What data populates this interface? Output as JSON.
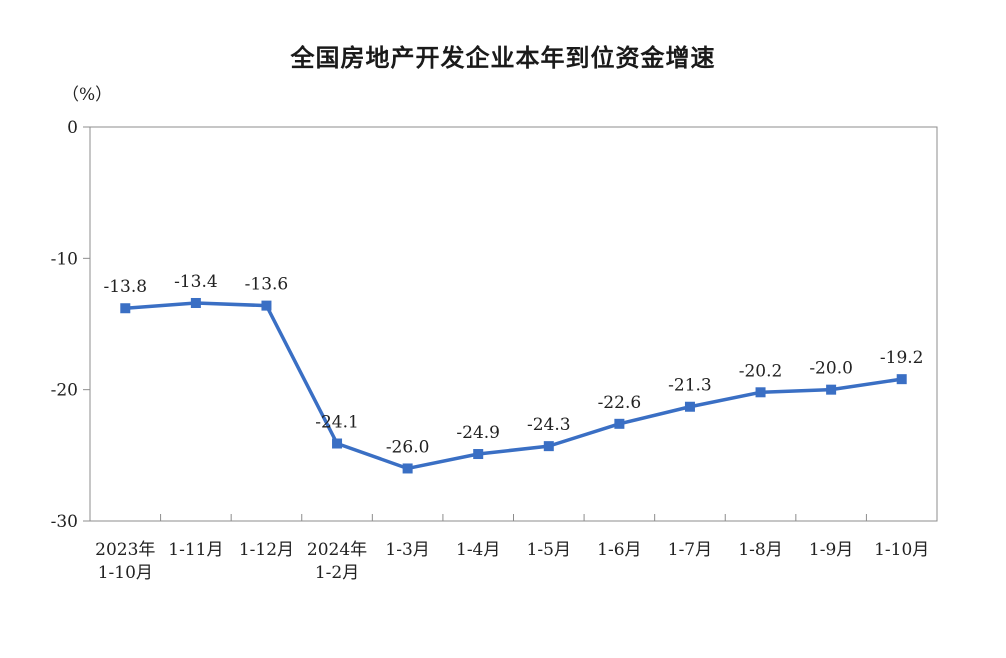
{
  "chart_data": {
    "type": "line",
    "title": "全国房地产开发企业本年到位资金增速",
    "unit": "（%）",
    "categories": [
      [
        "2023年",
        "1-10月"
      ],
      [
        "1-11月"
      ],
      [
        "1-12月"
      ],
      [
        "2024年",
        "1-2月"
      ],
      [
        "1-3月"
      ],
      [
        "1-4月"
      ],
      [
        "1-5月"
      ],
      [
        "1-6月"
      ],
      [
        "1-7月"
      ],
      [
        "1-8月"
      ],
      [
        "1-9月"
      ],
      [
        "1-10月"
      ]
    ],
    "series": [
      {
        "values": [
          -13.8,
          -13.4,
          -13.6,
          -24.1,
          -26.0,
          -24.9,
          -24.3,
          -22.6,
          -21.3,
          -20.2,
          -20.0,
          -19.2
        ],
        "labels": [
          "-13.8",
          "-13.4",
          "-13.6",
          "-24.1",
          "-26.0",
          "-24.9",
          "-24.3",
          "-22.6",
          "-21.3",
          "-20.2",
          "-20.0",
          "-19.2"
        ],
        "color": "#3a6fc4",
        "marker": "square"
      }
    ],
    "ylim": [
      -30,
      0
    ],
    "yticks": [
      0,
      -10,
      -20,
      -30
    ],
    "ytick_labels": [
      "0",
      "-10",
      "-20",
      "-30"
    ],
    "grid": false,
    "legend": "none",
    "frame_color": "#8c8c8c"
  }
}
